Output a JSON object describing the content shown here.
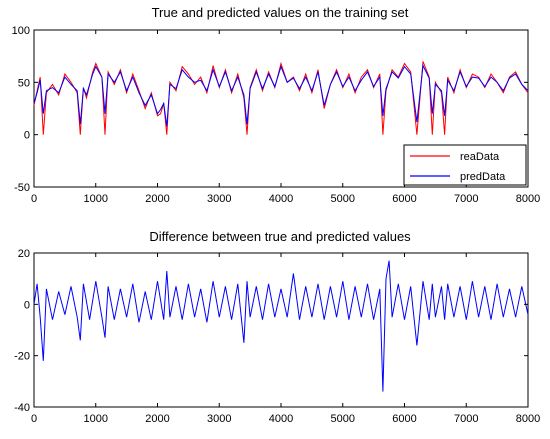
{
  "colors": {
    "real": "#ff0000",
    "pred": "#0000ff",
    "diff": "#0000ff",
    "axis": "#000000",
    "background": "#ffffff"
  },
  "chart_data": [
    {
      "type": "line",
      "title": "True and predicted values on the training set",
      "xlabel": "",
      "ylabel": "",
      "xlim": [
        0,
        8000
      ],
      "ylim": [
        -50,
        100
      ],
      "xticks": [
        0,
        1000,
        2000,
        3000,
        4000,
        5000,
        6000,
        7000,
        8000
      ],
      "xtick_labels": [
        "0",
        "1000",
        "2000",
        "3000",
        "4000",
        "5000",
        "6000",
        "7000",
        "8000"
      ],
      "yticks": [
        -50,
        0,
        50,
        100
      ],
      "ytick_labels": [
        "-50",
        "0",
        "50",
        "100"
      ],
      "grid": false,
      "legend": {
        "placement": "bottom-right",
        "entries": [
          "reaData",
          "predData"
        ]
      },
      "x": [
        0,
        50,
        100,
        150,
        200,
        300,
        400,
        500,
        600,
        700,
        750,
        800,
        850,
        950,
        1000,
        1100,
        1150,
        1200,
        1300,
        1400,
        1500,
        1600,
        1700,
        1800,
        1900,
        2000,
        2050,
        2100,
        2150,
        2200,
        2300,
        2400,
        2500,
        2600,
        2700,
        2800,
        2900,
        3000,
        3100,
        3200,
        3300,
        3400,
        3450,
        3500,
        3600,
        3700,
        3800,
        3900,
        4000,
        4100,
        4200,
        4300,
        4400,
        4500,
        4600,
        4700,
        4800,
        4900,
        5000,
        5100,
        5200,
        5300,
        5400,
        5500,
        5600,
        5650,
        5700,
        5800,
        5900,
        6000,
        6100,
        6200,
        6300,
        6400,
        6450,
        6500,
        6600,
        6650,
        6700,
        6800,
        6900,
        7000,
        7100,
        7200,
        7300,
        7400,
        7500,
        7600,
        7700,
        7800,
        7900,
        8000
      ],
      "series": [
        {
          "name": "reaData",
          "values": [
            28,
            42,
            55,
            0,
            40,
            48,
            38,
            58,
            50,
            40,
            0,
            45,
            35,
            60,
            68,
            55,
            0,
            60,
            48,
            62,
            40,
            58,
            42,
            25,
            40,
            18,
            20,
            30,
            0,
            50,
            42,
            65,
            58,
            48,
            55,
            40,
            66,
            45,
            62,
            40,
            58,
            35,
            0,
            45,
            62,
            42,
            60,
            45,
            68,
            50,
            55,
            42,
            58,
            40,
            62,
            25,
            48,
            62,
            45,
            58,
            40,
            55,
            62,
            45,
            58,
            0,
            42,
            62,
            55,
            68,
            60,
            0,
            70,
            55,
            0,
            50,
            40,
            0,
            55,
            40,
            62,
            45,
            58,
            55,
            45,
            58,
            50,
            40,
            55,
            60,
            48,
            40
          ]
        },
        {
          "name": "predData",
          "values": [
            30,
            40,
            52,
            20,
            42,
            45,
            40,
            55,
            48,
            42,
            10,
            44,
            38,
            58,
            65,
            55,
            20,
            58,
            50,
            60,
            42,
            55,
            40,
            28,
            38,
            20,
            24,
            30,
            8,
            48,
            44,
            62,
            55,
            50,
            52,
            42,
            62,
            46,
            60,
            42,
            55,
            38,
            10,
            44,
            60,
            44,
            58,
            46,
            65,
            50,
            54,
            44,
            55,
            42,
            60,
            28,
            48,
            60,
            46,
            55,
            42,
            52,
            60,
            46,
            55,
            18,
            44,
            60,
            54,
            65,
            58,
            12,
            66,
            54,
            20,
            48,
            42,
            18,
            52,
            42,
            60,
            46,
            55,
            54,
            46,
            55,
            50,
            42,
            54,
            58,
            48,
            42
          ]
        }
      ]
    },
    {
      "type": "line",
      "title": "Difference between true and predicted values",
      "xlabel": "",
      "ylabel": "",
      "xlim": [
        0,
        8000
      ],
      "ylim": [
        -40,
        20
      ],
      "xticks": [
        0,
        1000,
        2000,
        3000,
        4000,
        5000,
        6000,
        7000,
        8000
      ],
      "xtick_labels": [
        "0",
        "1000",
        "2000",
        "3000",
        "4000",
        "5000",
        "6000",
        "7000",
        "8000"
      ],
      "yticks": [
        -40,
        -20,
        0,
        20
      ],
      "ytick_labels": [
        "-40",
        "-20",
        "0",
        "20"
      ],
      "grid": false,
      "x": [
        0,
        50,
        100,
        150,
        200,
        300,
        400,
        500,
        600,
        700,
        750,
        800,
        900,
        1000,
        1100,
        1150,
        1200,
        1300,
        1400,
        1500,
        1600,
        1700,
        1800,
        1900,
        2000,
        2100,
        2150,
        2200,
        2300,
        2400,
        2500,
        2600,
        2700,
        2800,
        2900,
        3000,
        3100,
        3200,
        3300,
        3400,
        3450,
        3500,
        3600,
        3700,
        3800,
        3900,
        4000,
        4100,
        4200,
        4300,
        4400,
        4500,
        4600,
        4700,
        4800,
        4900,
        5000,
        5100,
        5200,
        5300,
        5400,
        5500,
        5600,
        5650,
        5700,
        5750,
        5800,
        5900,
        6000,
        6100,
        6200,
        6300,
        6400,
        6450,
        6500,
        6600,
        6650,
        6700,
        6800,
        6900,
        7000,
        7100,
        7200,
        7300,
        7400,
        7500,
        7600,
        7700,
        7800,
        7900,
        8000
      ],
      "series": [
        {
          "name": "",
          "values": [
            0,
            8,
            -5,
            -22,
            6,
            -6,
            5,
            -4,
            7,
            -5,
            -14,
            8,
            -6,
            9,
            -5,
            -13,
            7,
            -6,
            6,
            -5,
            8,
            -7,
            5,
            -6,
            9,
            -6,
            13,
            -5,
            7,
            -6,
            8,
            -5,
            6,
            -7,
            9,
            -5,
            7,
            -6,
            8,
            -15,
            9,
            -5,
            7,
            -6,
            8,
            -5,
            6,
            -5,
            12,
            -6,
            7,
            -5,
            8,
            -6,
            7,
            -5,
            9,
            -6,
            7,
            -5,
            8,
            -6,
            6,
            -34,
            10,
            17,
            -5,
            8,
            -6,
            7,
            -16,
            9,
            -6,
            8,
            -5,
            7,
            -6,
            8,
            -5,
            7,
            -6,
            9,
            -5,
            7,
            -6,
            8,
            -5,
            6,
            -5,
            7,
            -4
          ]
        }
      ]
    }
  ]
}
